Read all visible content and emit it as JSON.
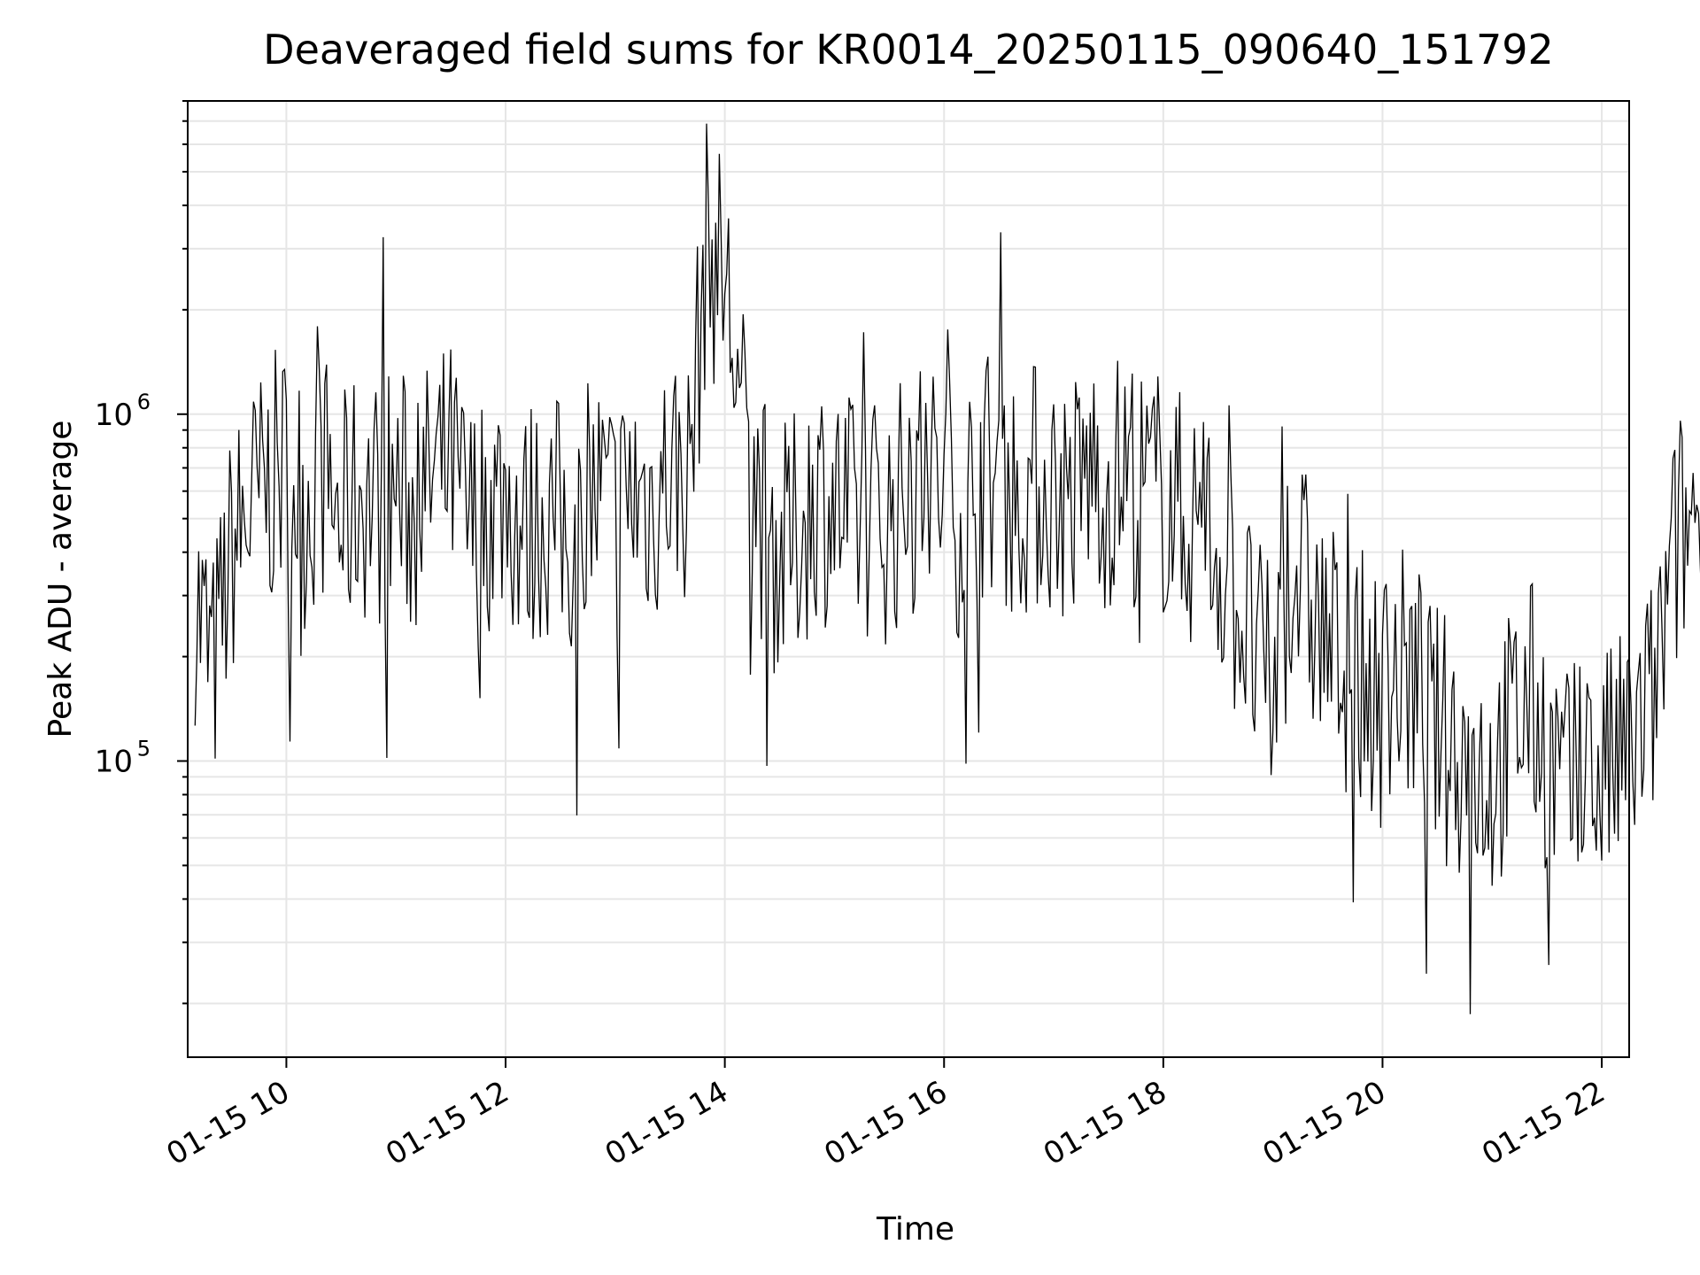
{
  "chart_data": {
    "type": "line",
    "title": "Deaveraged field sums for KR0014_20250115_090640_151792",
    "xlabel": "Time",
    "ylabel": "Peak ADU - average",
    "x_tick_labels": [
      "01-15 10",
      "01-15 12",
      "01-15 14",
      "01-15 16",
      "01-15 18",
      "01-15 20",
      "01-15 22"
    ],
    "y_tick_labels": [
      {
        "base": "10",
        "exp": "5"
      },
      {
        "base": "10",
        "exp": "6"
      }
    ],
    "y_scale": "log",
    "xlim": [
      "2025-01-15 09:06",
      "2025-01-15 22:15"
    ],
    "ylim": [
      14000,
      8000000
    ],
    "grid": true,
    "line_color": "#000000",
    "grid_color": "#e6e6e6",
    "series": [
      {
        "values_sampled_every_10_min": {
          "x_start": "2025-01-15 09:10",
          "step_minutes": 10,
          "y": [
            300000,
            180000,
            400000,
            520000,
            620000,
            700000,
            550000,
            680000,
            480000,
            600000,
            560000,
            620000,
            500000,
            650000,
            700000,
            470000,
            540000,
            600000,
            450000,
            520000,
            480000,
            420000,
            580000,
            500000,
            600000,
            550000,
            700000,
            650000,
            3000000,
            2500000,
            900000,
            520000,
            380000,
            450000,
            600000,
            550000,
            480000,
            520000,
            500000,
            580000,
            640000,
            600000,
            520000,
            700000,
            650000,
            580000,
            620000,
            600000,
            560000,
            680000,
            620000,
            700000,
            600000,
            600000,
            500000,
            480000,
            400000,
            300000,
            200000,
            150000,
            400000,
            280000,
            220000,
            180000,
            170000,
            150000,
            180000,
            160000,
            120000,
            110000,
            100000,
            90000,
            120000,
            150000,
            110000,
            80000,
            85000,
            90000,
            100000,
            120000,
            160000,
            400000,
            520000,
            600000,
            500000,
            400000,
            300000,
            350000,
            250000,
            200000,
            150000,
            110000,
            100000,
            95000,
            90000,
            85000,
            80000,
            75000,
            70000,
            90000,
            100000,
            75000,
            80000,
            95000,
            85000,
            75000,
            85000,
            90000,
            80000,
            70000,
            80000,
            85000,
            75000,
            85000,
            90000,
            100000,
            95000,
            90000,
            85000,
            95000,
            95000,
            90000,
            100000,
            110000,
            130000,
            120000,
            130000,
            150000,
            160000,
            170000,
            180000,
            200000,
            220000,
            190000,
            230000,
            250000,
            270000,
            300000,
            320000,
            330000,
            350000,
            380000,
            380000,
            400000,
            420000,
            400000,
            440000,
            450000,
            430000,
            450000
          ]
        }
      }
    ]
  }
}
